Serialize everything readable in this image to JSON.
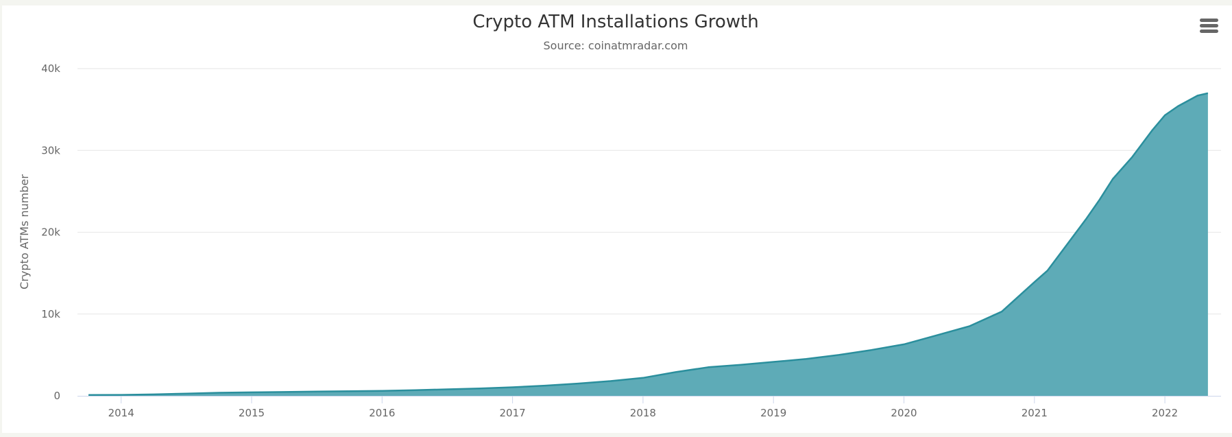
{
  "chart_data": {
    "type": "area",
    "title": "Crypto ATM Installations Growth",
    "subtitle": "Source: coinatmradar.com",
    "xlabel": "",
    "ylabel": "Crypto ATMs number",
    "xlim": [
      2013.65,
      2022.4
    ],
    "ylim": [
      0,
      40000
    ],
    "x_ticks": [
      "2014",
      "2015",
      "2016",
      "2017",
      "2018",
      "2019",
      "2020",
      "2021",
      "2022"
    ],
    "y_ticks": [
      "0",
      "10k",
      "20k",
      "30k",
      "40k"
    ],
    "grid": true,
    "legend": "none",
    "colors": {
      "line": "#2b8f9d",
      "fill": "#5eabb7",
      "grid": "#e6e6e6",
      "axis": "#ccd6eb"
    },
    "series": [
      {
        "name": "Crypto ATMs",
        "x": [
          2013.75,
          2014.0,
          2014.25,
          2014.5,
          2014.75,
          2015.0,
          2015.25,
          2015.5,
          2015.75,
          2016.0,
          2016.25,
          2016.5,
          2016.75,
          2017.0,
          2017.25,
          2017.5,
          2017.75,
          2018.0,
          2018.25,
          2018.5,
          2018.75,
          2019.0,
          2019.25,
          2019.5,
          2019.75,
          2020.0,
          2020.25,
          2020.5,
          2020.75,
          2021.0,
          2021.1,
          2021.25,
          2021.4,
          2021.5,
          2021.6,
          2021.75,
          2021.9,
          2022.0,
          2022.1,
          2022.25,
          2022.33
        ],
        "values": [
          100,
          120,
          180,
          280,
          380,
          430,
          470,
          520,
          560,
          600,
          700,
          800,
          900,
          1050,
          1250,
          1500,
          1800,
          2200,
          2900,
          3500,
          3800,
          4150,
          4500,
          5000,
          5600,
          6300,
          7400,
          8500,
          10300,
          13900,
          15300,
          18500,
          21700,
          24000,
          26500,
          29200,
          32400,
          34300,
          35400,
          36700,
          37000
        ]
      }
    ]
  },
  "toolbar": {
    "menu_icon": "hamburger-menu-icon"
  }
}
